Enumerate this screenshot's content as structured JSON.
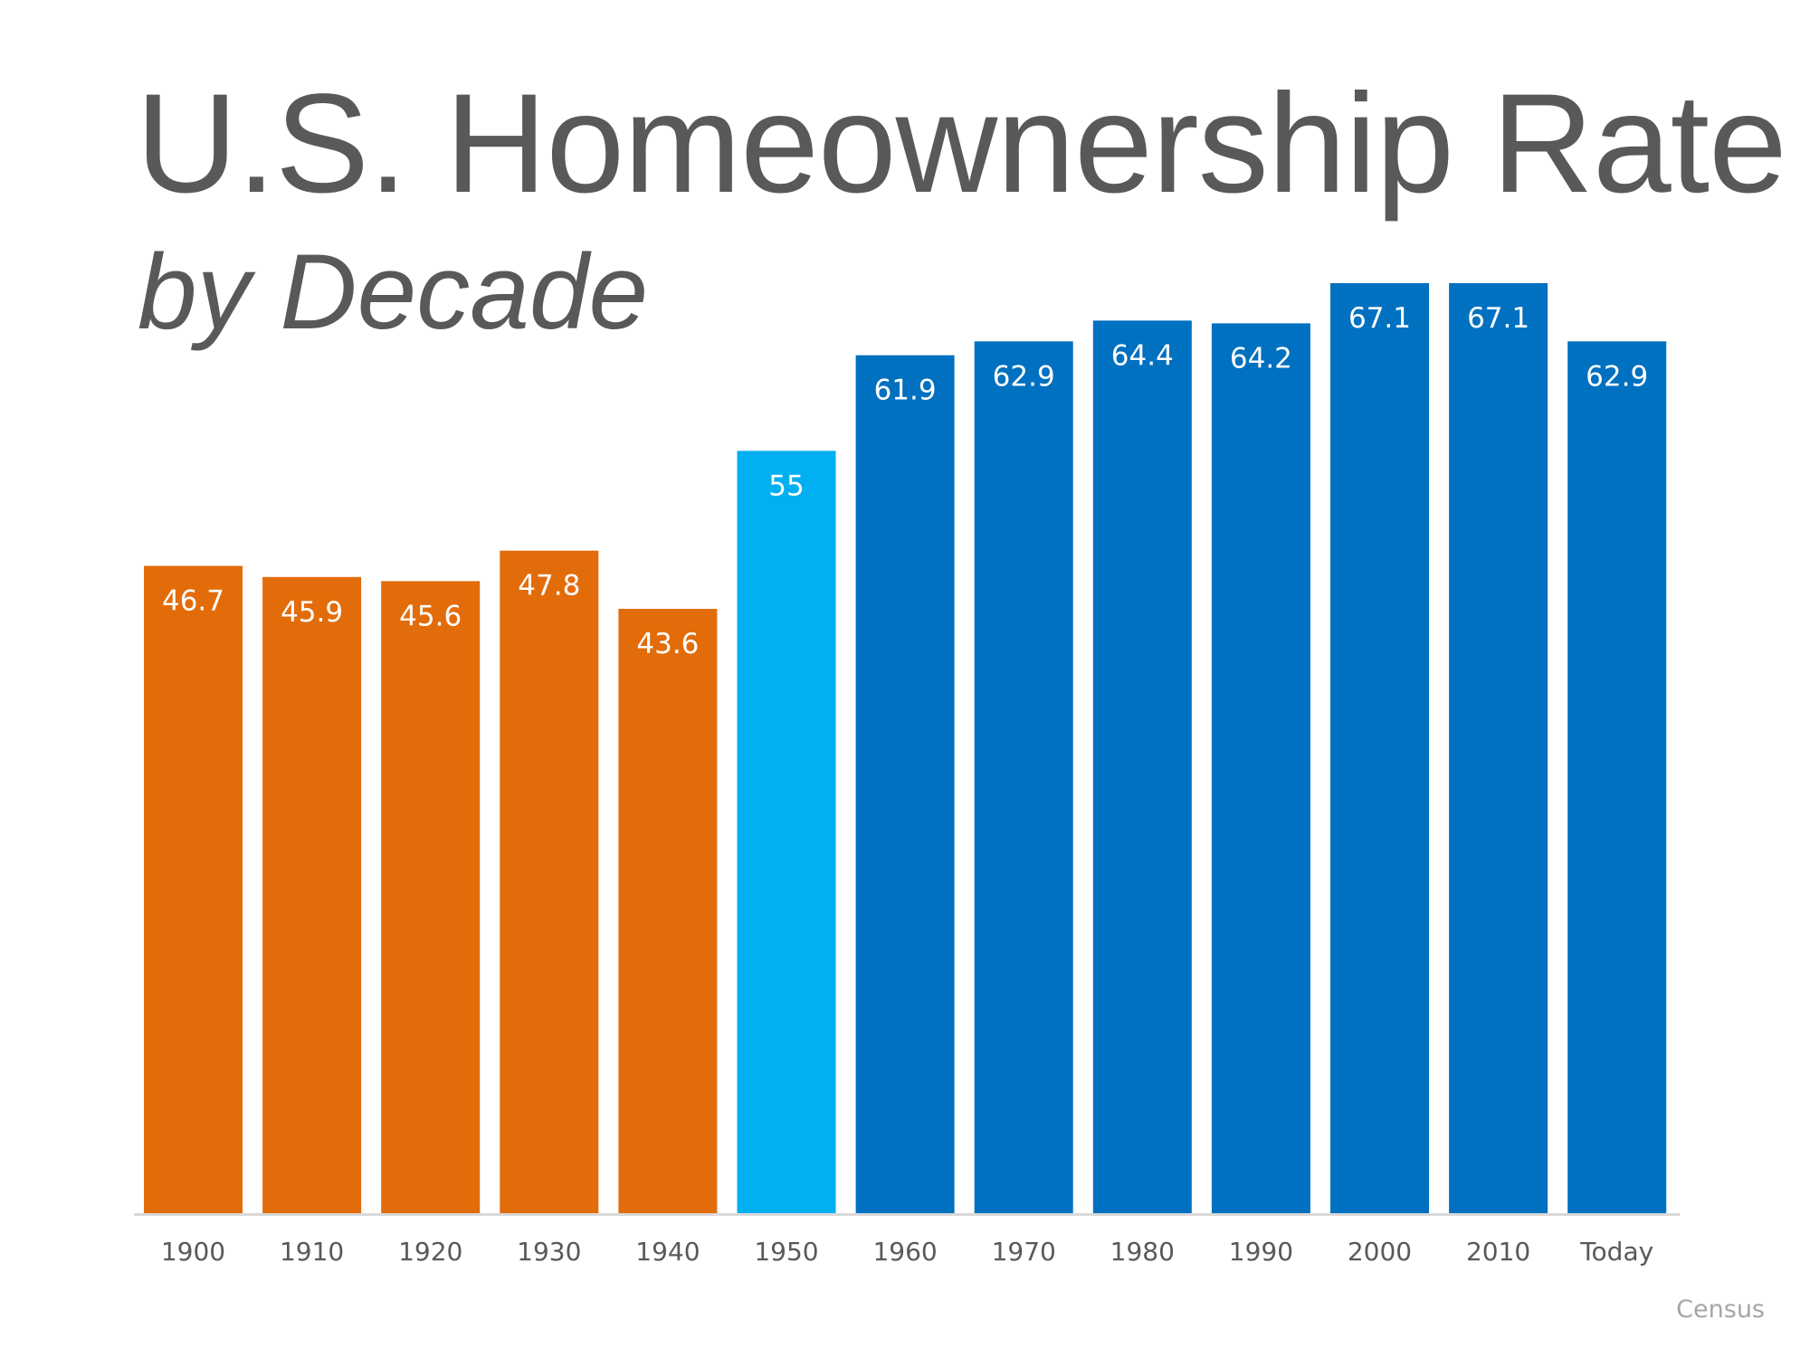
{
  "chart_data": {
    "type": "bar",
    "title": "U.S. Homeownership Rate",
    "subtitle": "by Decade",
    "categories": [
      "1900",
      "1910",
      "1920",
      "1930",
      "1940",
      "1950",
      "1960",
      "1970",
      "1980",
      "1990",
      "2000",
      "2010",
      "Today"
    ],
    "values": [
      46.7,
      45.9,
      45.6,
      47.8,
      43.6,
      55,
      61.9,
      62.9,
      64.4,
      64.2,
      67.1,
      67.1,
      62.9
    ],
    "colors": [
      "#E36C0A",
      "#E36C0A",
      "#E36C0A",
      "#E36C0A",
      "#E36C0A",
      "#00B0F0",
      "#0070C0",
      "#0070C0",
      "#0070C0",
      "#0070C0",
      "#0070C0",
      "#0070C0",
      "#0070C0"
    ],
    "data_labels": true,
    "xlabel": "",
    "ylabel": "",
    "ylim": [
      0,
      67.1
    ],
    "grid": false,
    "y_axis_visible": false,
    "source": "Census"
  }
}
